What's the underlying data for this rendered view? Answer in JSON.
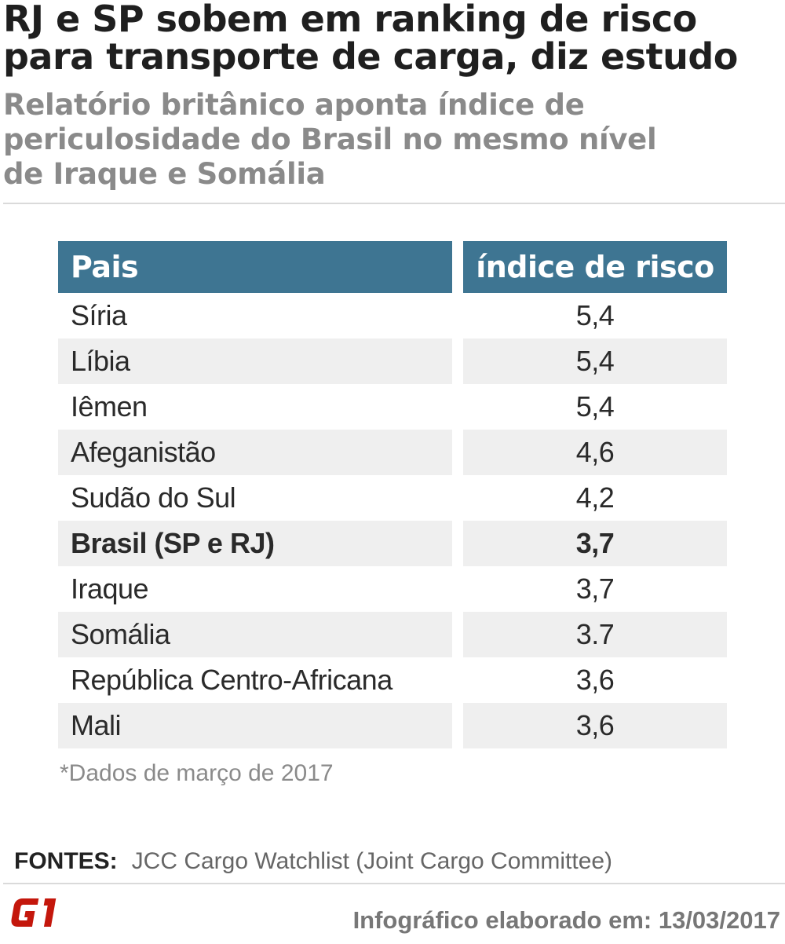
{
  "header": {
    "title": "RJ e SP sobem em ranking de risco para transporte de carga, diz estudo",
    "subtitle": "Relatório britânico aponta índice de periculosidade do Brasil no mesmo nível de Iraque e Somália"
  },
  "chart_data": {
    "type": "table",
    "columns": [
      "Pais",
      "índice de risco"
    ],
    "rows": [
      {
        "country": "Síria",
        "value": "5,4"
      },
      {
        "country": "Líbia",
        "value": "5,4"
      },
      {
        "country": "Iêmen",
        "value": "5,4"
      },
      {
        "country": "Afeganistão",
        "value": "4,6"
      },
      {
        "country": "Sudão do Sul",
        "value": "4,2"
      },
      {
        "country": "Brasil (SP e RJ)",
        "value": "3,7",
        "highlight": true
      },
      {
        "country": "Iraque",
        "value": "3,7"
      },
      {
        "country": "Somália",
        "value": "3.7"
      },
      {
        "country": "República Centro-Africana",
        "value": "3,6"
      },
      {
        "country": "Mali",
        "value": "3,6"
      }
    ],
    "header_color": "#3e7592",
    "stripe_color": "#efefef"
  },
  "footnote": "*Dados de março de 2017",
  "sources": {
    "label": "FONTES:",
    "text": "JCC Cargo Watchlist (Joint Cargo Committee)"
  },
  "logo": {
    "text": "G1",
    "color": "#c4170c"
  },
  "credit": "Infográfico elaborado em: 13/03/2017"
}
